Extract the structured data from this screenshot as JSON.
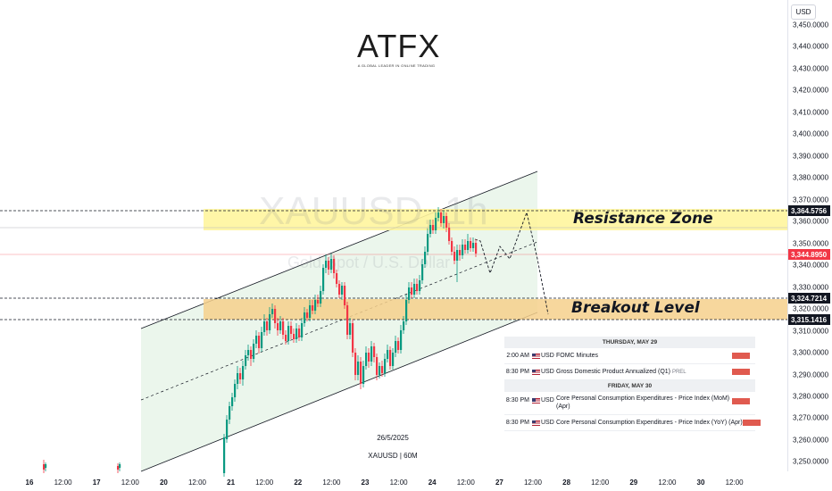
{
  "logo": {
    "name": "ATFX",
    "tagline": "A GLOBAL LEADER IN ONLINE TRADING"
  },
  "watermark": {
    "symbol": "XAUUSD, 1h",
    "description": "Gold Spot / U.S. Dollar"
  },
  "currency_button": "USD",
  "price_axis": {
    "ticks": [
      "3,450.0000",
      "3,440.0000",
      "3,430.0000",
      "3,420.0000",
      "3,410.0000",
      "3,400.0000",
      "3,390.0000",
      "3,380.0000",
      "3,370.0000",
      "3,360.0000",
      "3,350.0000",
      "3,340.0000",
      "3,330.0000",
      "3,320.0000",
      "3,310.0000",
      "3,300.0000",
      "3,290.0000",
      "3,280.0000",
      "3,270.0000",
      "3,260.0000",
      "3,250.0000"
    ],
    "tags": {
      "resistance": "3,364.5756",
      "current": "3,344.8950",
      "breakout_top": "3,324.7214",
      "breakout_bottom": "3,315.1416"
    },
    "colors": {
      "current": "#f23645",
      "tag_bg": "#131722"
    }
  },
  "time_axis": {
    "labels": [
      {
        "t": "16",
        "bold": true
      },
      {
        "t": "12:00",
        "bold": false
      },
      {
        "t": "17",
        "bold": true
      },
      {
        "t": "12:00",
        "bold": false
      },
      {
        "t": "20",
        "bold": true
      },
      {
        "t": "12:00",
        "bold": false
      },
      {
        "t": "21",
        "bold": true
      },
      {
        "t": "12:00",
        "bold": false
      },
      {
        "t": "22",
        "bold": true
      },
      {
        "t": "12:00",
        "bold": false
      },
      {
        "t": "23",
        "bold": true
      },
      {
        "t": "12:00",
        "bold": false
      },
      {
        "t": "24",
        "bold": true
      },
      {
        "t": "12:00",
        "bold": false
      },
      {
        "t": "27",
        "bold": true
      },
      {
        "t": "12:00",
        "bold": false
      },
      {
        "t": "28",
        "bold": true
      },
      {
        "t": "12:00",
        "bold": false
      },
      {
        "t": "29",
        "bold": true
      },
      {
        "t": "12:00",
        "bold": false
      },
      {
        "t": "30",
        "bold": true
      },
      {
        "t": "12:00",
        "bold": false
      }
    ]
  },
  "annotations": {
    "resistance_label": "Resistance Zone",
    "breakout_label": "Breakout Level",
    "date_text": "26/5/2025",
    "symbol_tf": "XAUUSD | 60M",
    "colors": {
      "resistance_zone": "#fff59d",
      "breakout_zone": "#f6d08c",
      "channel_fill": "#e8f5e9",
      "bull": "#089981",
      "bear": "#f23645"
    }
  },
  "calendar": {
    "days": [
      {
        "header": "THURSDAY, MAY 29",
        "events": [
          {
            "time": "2:00 AM",
            "currency": "USD",
            "name": "FOMC Minutes",
            "tag": ""
          },
          {
            "time": "8:30 PM",
            "currency": "USD",
            "name": "Gross Domestic Product Annualized (Q1)",
            "tag": "PREL"
          }
        ]
      },
      {
        "header": "FRIDAY, MAY 30",
        "events": [
          {
            "time": "8:30 PM",
            "currency": "USD",
            "name": "Core Personal Consumption Expenditures - Price Index (MoM) (Apr)",
            "tag": ""
          },
          {
            "time": "8:30 PM",
            "currency": "USD",
            "name": "Core Personal Consumption Expenditures - Price Index (YoY) (Apr)",
            "tag": ""
          }
        ]
      }
    ]
  }
}
